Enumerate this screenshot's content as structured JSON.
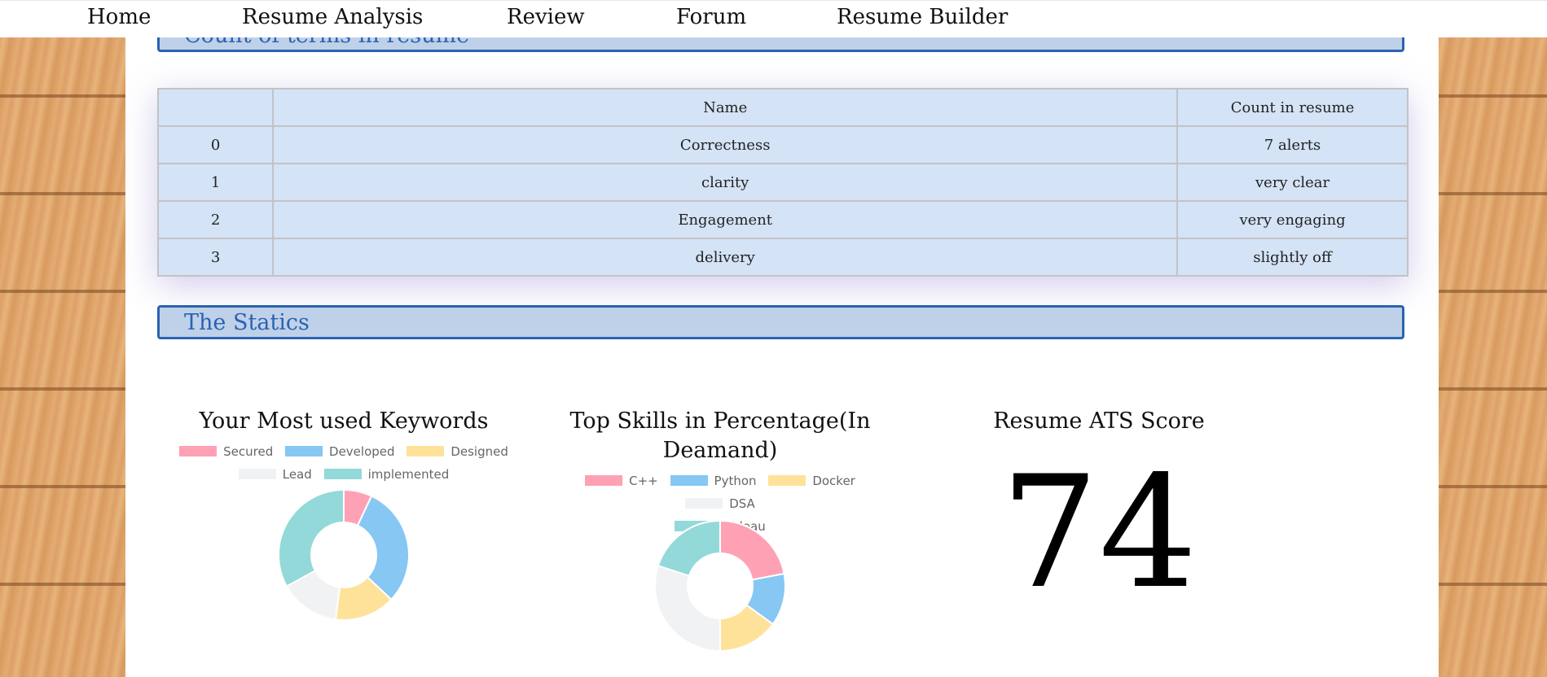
{
  "nav": {
    "items": [
      "Home",
      "Resume Analysis",
      "Review",
      "Forum",
      "Resume Builder"
    ]
  },
  "sections": {
    "count_terms_title": "Count of terms in resume",
    "statics_title": "The Statics"
  },
  "table": {
    "headers": [
      "",
      "Name",
      "Count in resume"
    ],
    "rows": [
      [
        "0",
        "Correctness",
        "7 alerts"
      ],
      [
        "1",
        "clarity",
        "very clear"
      ],
      [
        "2",
        "Engagement",
        "very engaging"
      ],
      [
        "3",
        "delivery",
        "slightly off"
      ]
    ]
  },
  "colors": {
    "pink": "#ffa1b5",
    "blue": "#86c7f3",
    "yellow": "#ffe29a",
    "gray": "#f1f2f4",
    "teal": "#93d9d9",
    "accent": "#2a63b0"
  },
  "charts": {
    "keywords": {
      "title": "Your Most used Keywords",
      "legend": [
        "Secured",
        "Developed",
        "Designed",
        "Lead",
        "implemented"
      ],
      "values": [
        7,
        30,
        15,
        15,
        33
      ]
    },
    "skills": {
      "title": "Top Skills in Percentage(In Deamand)",
      "legend": [
        "C++",
        "Python",
        "Docker",
        "DSA",
        "Tableau"
      ],
      "values": [
        22,
        13,
        15,
        30,
        20
      ]
    }
  },
  "ats": {
    "title": "Resume ATS Score",
    "score": "74"
  }
}
